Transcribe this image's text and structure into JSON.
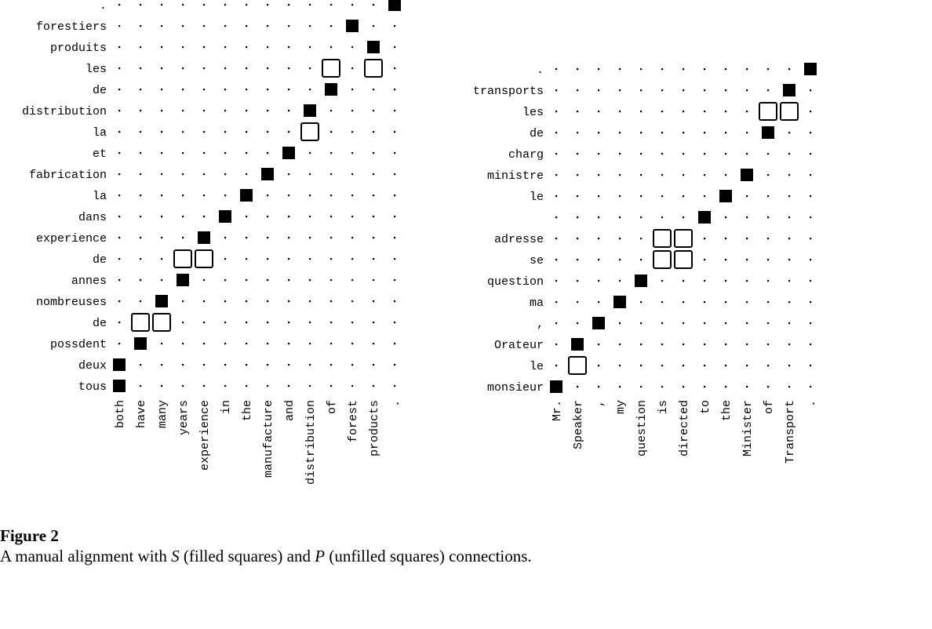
{
  "figure": {
    "label": "Figure 2",
    "caption_pre1": "A manual alignment with ",
    "caption_s": "S",
    "caption_mid": " (filled squares) and ",
    "caption_p": "P",
    "caption_post": " (unfilled squares) connections."
  },
  "alignments": [
    {
      "english": [
        "both",
        "have",
        "many",
        "years",
        "experience",
        "in",
        "the",
        "manufacture",
        "and",
        "distribution",
        "of",
        "forest",
        "products",
        "."
      ],
      "french": [
        "tous",
        "deux",
        "possdent",
        "de",
        "nombreuses",
        "annes",
        "de",
        "experience",
        "dans",
        "la",
        "fabrication",
        "et",
        "la",
        "distribution",
        "de",
        "les",
        "produits",
        "forestiers",
        "."
      ],
      "sure": [
        [
          0,
          0
        ],
        [
          0,
          1
        ],
        [
          1,
          2
        ],
        [
          2,
          4
        ],
        [
          3,
          5
        ],
        [
          4,
          7
        ],
        [
          5,
          8
        ],
        [
          6,
          9
        ],
        [
          7,
          10
        ],
        [
          8,
          11
        ],
        [
          9,
          13
        ],
        [
          10,
          14
        ],
        [
          11,
          17
        ],
        [
          12,
          16
        ],
        [
          13,
          18
        ]
      ],
      "possible": [
        [
          1,
          3
        ],
        [
          2,
          3
        ],
        [
          3,
          6
        ],
        [
          4,
          6
        ],
        [
          9,
          12
        ],
        [
          10,
          15
        ],
        [
          12,
          15
        ]
      ]
    },
    {
      "english": [
        "Mr.",
        "Speaker",
        ",",
        "my",
        "question",
        "is",
        "directed",
        "to",
        "the",
        "Minister",
        "of",
        "Transport",
        "."
      ],
      "french": [
        "monsieur",
        "le",
        "Orateur",
        ",",
        "ma",
        "question",
        "se",
        "adresse",
        "",
        "le",
        "ministre",
        "charg",
        "de",
        "les",
        "transports",
        "."
      ],
      "sure": [
        [
          0,
          0
        ],
        [
          1,
          2
        ],
        [
          2,
          3
        ],
        [
          3,
          4
        ],
        [
          4,
          5
        ],
        [
          7,
          8
        ],
        [
          8,
          9
        ],
        [
          9,
          10
        ],
        [
          10,
          12
        ],
        [
          11,
          14
        ],
        [
          12,
          15
        ]
      ],
      "possible": [
        [
          1,
          1
        ],
        [
          5,
          6
        ],
        [
          6,
          6
        ],
        [
          5,
          7
        ],
        [
          6,
          7
        ],
        [
          10,
          13
        ],
        [
          11,
          13
        ]
      ]
    }
  ]
}
